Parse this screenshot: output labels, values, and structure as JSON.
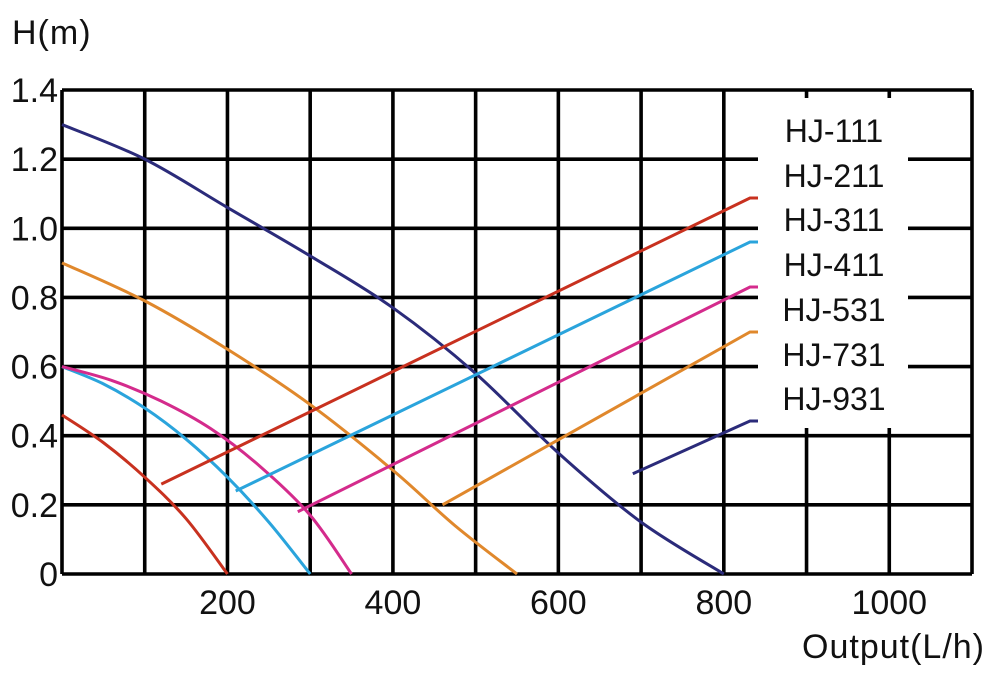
{
  "chart_data": {
    "type": "line",
    "title": "",
    "ylabel": "H(m)",
    "xlabel": "Output(L/h)",
    "xlim": [
      0,
      1100
    ],
    "ylim": [
      0,
      1.4
    ],
    "x_ticks": [
      {
        "value": 200,
        "label": "200"
      },
      {
        "value": 400,
        "label": "400"
      },
      {
        "value": 600,
        "label": "600"
      },
      {
        "value": 800,
        "label": "800"
      },
      {
        "value": 1000,
        "label": "1000"
      }
    ],
    "y_ticks": [
      {
        "value": 0,
        "label": "0"
      },
      {
        "value": 0.2,
        "label": "0.2"
      },
      {
        "value": 0.4,
        "label": "0.4"
      },
      {
        "value": 0.6,
        "label": "0.6"
      },
      {
        "value": 0.8,
        "label": "0.8"
      },
      {
        "value": 1.0,
        "label": "1.0"
      },
      {
        "value": 1.2,
        "label": "1.2"
      },
      {
        "value": 1.4,
        "label": "1.4"
      }
    ],
    "grid": true,
    "legend": "top-right",
    "series": [
      {
        "name": "HJ-111",
        "color": "#ffffff",
        "points": []
      },
      {
        "name": "HJ-211",
        "color": "#c8311f",
        "points": [
          [
            0,
            0.46
          ],
          [
            50,
            0.38
          ],
          [
            100,
            0.28
          ],
          [
            150,
            0.16
          ],
          [
            200,
            0.0
          ]
        ]
      },
      {
        "name": "HJ-311",
        "color": "#2aa4dc",
        "points": [
          [
            0,
            0.6
          ],
          [
            50,
            0.55
          ],
          [
            100,
            0.48
          ],
          [
            150,
            0.39
          ],
          [
            200,
            0.28
          ],
          [
            250,
            0.15
          ],
          [
            300,
            0.0
          ]
        ]
      },
      {
        "name": "HJ-411",
        "color": "#d42b8c",
        "points": [
          [
            0,
            0.6
          ],
          [
            60,
            0.56
          ],
          [
            120,
            0.5
          ],
          [
            180,
            0.42
          ],
          [
            240,
            0.31
          ],
          [
            300,
            0.17
          ],
          [
            350,
            0.0
          ]
        ]
      },
      {
        "name": "HJ-531",
        "color": "#e0882c",
        "points": [
          [
            0,
            0.9
          ],
          [
            100,
            0.79
          ],
          [
            200,
            0.65
          ],
          [
            300,
            0.49
          ],
          [
            400,
            0.3
          ],
          [
            475,
            0.14
          ],
          [
            550,
            0.0
          ]
        ]
      },
      {
        "name": "HJ-731",
        "color": "#e0882c",
        "points": []
      },
      {
        "name": "HJ-931",
        "color": "#2b2b7a",
        "points": [
          [
            0,
            1.3
          ],
          [
            100,
            1.2
          ],
          [
            200,
            1.06
          ],
          [
            300,
            0.92
          ],
          [
            400,
            0.77
          ],
          [
            500,
            0.58
          ],
          [
            600,
            0.35
          ],
          [
            700,
            0.15
          ],
          [
            800,
            0.0
          ]
        ]
      }
    ]
  }
}
